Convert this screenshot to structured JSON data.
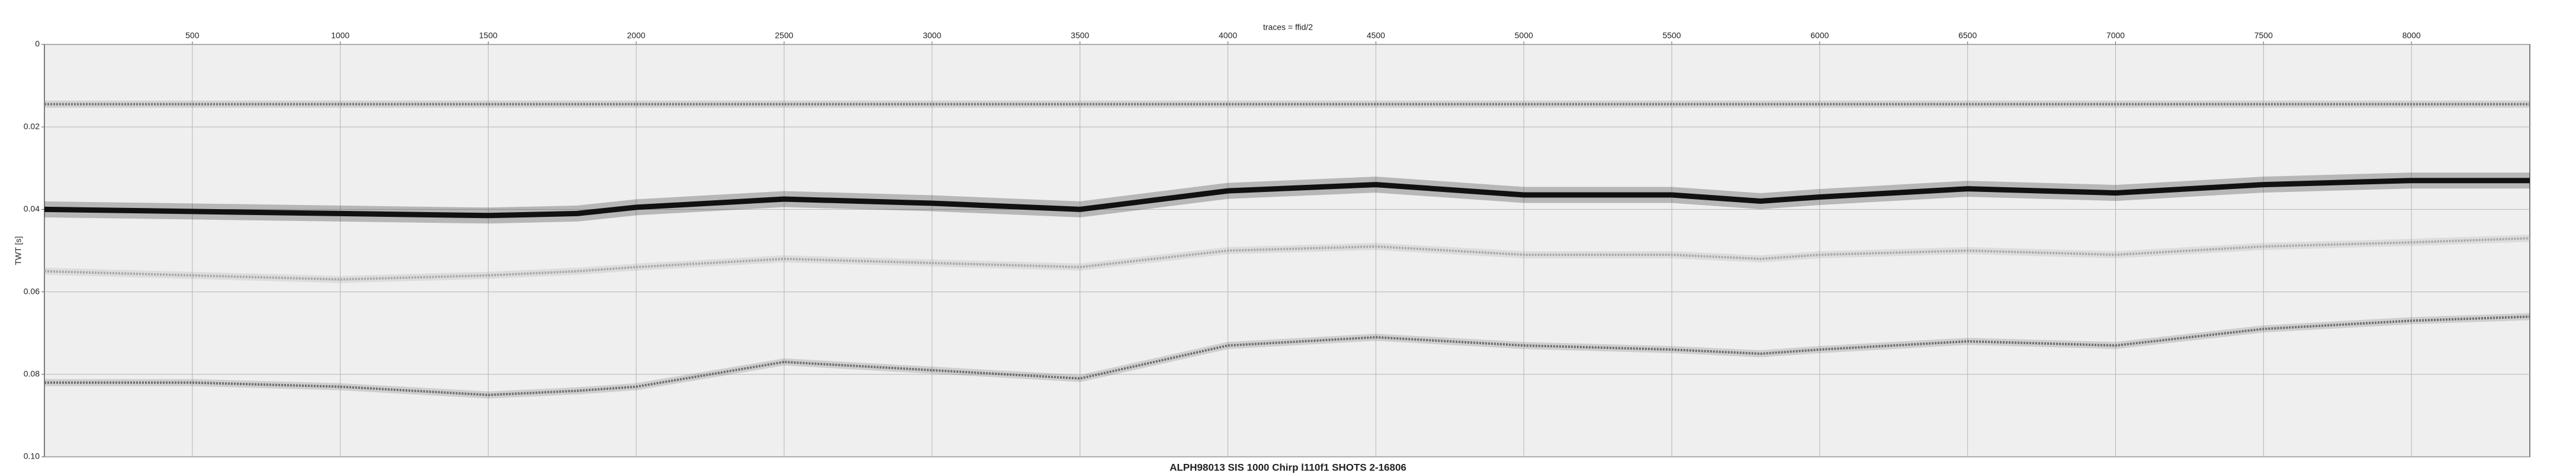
{
  "chart_data": {
    "type": "seismic",
    "title": "ALPH98013 SIS 1000 Chirp l110f1 SHOTS 2-16806",
    "x_label": "traces = ffid/2",
    "y_label": "TWT [s]",
    "xlim": [
      0,
      8400
    ],
    "ylim": [
      0,
      0.1
    ],
    "xticks": [
      500,
      1000,
      1500,
      2000,
      2500,
      3000,
      3500,
      4000,
      4500,
      5000,
      5500,
      6000,
      6500,
      7000,
      7500,
      8000
    ],
    "yticks": [
      0,
      0.02,
      0.04,
      0.06,
      0.08,
      {
        "value": 0.1,
        "label": "0.10"
      }
    ],
    "grid": true,
    "x": [
      0,
      500,
      1000,
      1500,
      1800,
      2000,
      2500,
      3000,
      3500,
      4000,
      4500,
      5000,
      5500,
      5800,
      6000,
      6500,
      7000,
      7500,
      8000,
      8400
    ],
    "horizons": [
      {
        "color": "#7a7a7a",
        "values": [
          0.0145,
          0.0145,
          0.0145,
          0.0145,
          0.0145,
          0.0145,
          0.0145,
          0.0145,
          0.0145,
          0.0145,
          0.0145,
          0.0145,
          0.0145,
          0.0145,
          0.0145,
          0.0145,
          0.0145,
          0.0145,
          0.0145,
          0.0145
        ]
      },
      {
        "color": "#111111",
        "values": [
          0.04,
          0.0405,
          0.041,
          0.0415,
          0.041,
          0.0395,
          0.0375,
          0.0385,
          0.04,
          0.0355,
          0.034,
          0.0365,
          0.0365,
          0.038,
          0.037,
          0.035,
          0.036,
          0.034,
          0.033,
          0.033
        ]
      },
      {
        "color": "#a8a8a8",
        "values": [
          0.055,
          0.056,
          0.057,
          0.056,
          0.055,
          0.054,
          0.052,
          0.053,
          0.054,
          0.05,
          0.049,
          0.051,
          0.051,
          0.052,
          0.051,
          0.05,
          0.051,
          0.049,
          0.048,
          0.047
        ]
      },
      {
        "color": "#6e6e6e",
        "values": [
          0.082,
          0.082,
          0.083,
          0.085,
          0.084,
          0.083,
          0.077,
          0.079,
          0.081,
          0.073,
          0.071,
          0.073,
          0.074,
          0.075,
          0.074,
          0.072,
          0.073,
          0.069,
          0.067,
          0.066
        ]
      }
    ]
  }
}
